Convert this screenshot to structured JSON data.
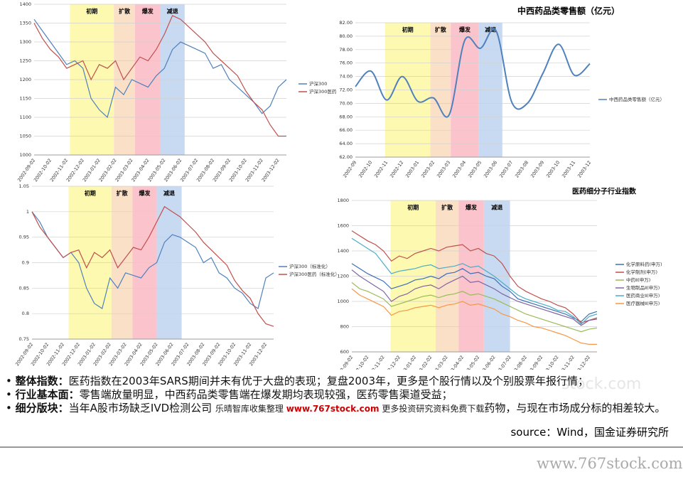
{
  "chart_data": [
    {
      "type": "line",
      "grid": true,
      "legend": "right",
      "smooth": false,
      "categories": [
        "2002-09-02",
        null,
        "2002-10-02",
        null,
        "2002-11-02",
        null,
        "2002-12-02",
        null,
        "2003-01-02",
        null,
        "2003-02-02",
        null,
        "2003-03-02",
        null,
        "2003-04-02",
        null,
        "2003-05-02",
        null,
        "2003-06-02",
        null,
        "2003-07-02",
        null,
        "2003-08-02",
        null,
        "2003-09-02",
        null,
        "2003-10-02",
        null,
        "2003-11-02",
        null,
        "2003-12-02",
        null
      ],
      "ylim": [
        1000,
        1400
      ],
      "yticks": [
        1000,
        1050,
        1100,
        1150,
        1200,
        1250,
        1300,
        1350,
        1400
      ],
      "bands": [
        {
          "label": "初期",
          "start": 4.4,
          "end": 9.8,
          "color": "#fdf9b0"
        },
        {
          "label": "扩散",
          "start": 9.8,
          "end": 12.4,
          "color": "#fbe0c8"
        },
        {
          "label": "爆发",
          "start": 12.4,
          "end": 15.5,
          "color": "#fbc4cc"
        },
        {
          "label": "减退",
          "start": 15.5,
          "end": 18.5,
          "color": "#c8daf2"
        }
      ],
      "series": [
        {
          "name": "沪深300",
          "color": "#4f81bd",
          "values": [
            1360,
            1330,
            1300,
            1270,
            1240,
            1250,
            1230,
            1150,
            1120,
            1100,
            1180,
            1160,
            1200,
            1190,
            1180,
            1210,
            1230,
            1280,
            1300,
            1290,
            1280,
            1270,
            1230,
            1240,
            1200,
            1180,
            1160,
            1140,
            1110,
            1130,
            1180,
            1200
          ]
        },
        {
          "name": "沪深300医药",
          "color": "#c0504d",
          "values": [
            1350,
            1310,
            1280,
            1260,
            1230,
            1240,
            1250,
            1200,
            1240,
            1230,
            1250,
            1200,
            1230,
            1260,
            1250,
            1280,
            1320,
            1370,
            1360,
            1340,
            1320,
            1300,
            1270,
            1250,
            1230,
            1210,
            1170,
            1140,
            1120,
            1080,
            1050,
            1050
          ]
        }
      ]
    },
    {
      "type": "line",
      "grid": true,
      "legend": "right",
      "smooth": true,
      "title": "中西药品类零售额（亿元）",
      "categories": [
        "2002-09",
        "2002-10",
        "2002-11",
        "2002-12",
        "2003-01",
        "2003-02",
        "2003-03",
        "2003-04",
        "2003-05",
        "2003-06",
        "2003-07",
        "2003-08",
        "2003-09",
        "2003-10",
        "2003-11",
        "2003-12"
      ],
      "ylim": [
        62,
        82
      ],
      "yticks": [
        {
          "value": 62,
          "label": "62.00"
        },
        {
          "value": 64,
          "label": "64.00"
        },
        {
          "value": 66,
          "label": "66.00"
        },
        {
          "value": 68,
          "label": "68.00"
        },
        {
          "value": 70,
          "label": "70.00"
        },
        {
          "value": 72,
          "label": "72.00"
        },
        {
          "value": 74,
          "label": "74.00"
        },
        {
          "value": 76,
          "label": "76.00"
        },
        {
          "value": 78,
          "label": "78.00"
        },
        {
          "value": 80,
          "label": "80.00"
        },
        {
          "value": 82,
          "label": "82.00"
        }
      ],
      "bands": [
        {
          "label": "初期",
          "start": 1.9,
          "end": 4.8,
          "color": "#fdf9b0"
        },
        {
          "label": "扩散",
          "start": 4.8,
          "end": 6.1,
          "color": "#fbe0c8"
        },
        {
          "label": "爆发",
          "start": 6.1,
          "end": 7.9,
          "color": "#fbc4cc"
        },
        {
          "label": "减退",
          "start": 7.9,
          "end": 9.4,
          "color": "#c8daf2"
        }
      ],
      "series": [
        {
          "name": "中西药品类零售额（亿元）",
          "color": "#4f81bd",
          "values": [
            72.5,
            74.8,
            70.5,
            74.0,
            70.3,
            70.8,
            68.3,
            79.4,
            78.2,
            80.8,
            70.2,
            70.0,
            74.5,
            78.8,
            74.2,
            75.9
          ]
        }
      ]
    },
    {
      "type": "line",
      "grid": true,
      "legend": "right",
      "smooth": false,
      "categories": [
        "2002-09-02",
        null,
        "2002-10-02",
        null,
        "2002-11-02",
        null,
        "2002-12-02",
        null,
        "2003-01-02",
        null,
        "2003-02-02",
        null,
        "2003-03-02",
        null,
        "2003-04-02",
        null,
        "2003-05-02",
        null,
        "2003-06-02",
        null,
        "2003-07-02",
        null,
        "2003-08-02",
        null,
        "2003-09-02",
        null,
        "2003-10-02",
        null,
        "2003-11-02",
        null,
        "2003-12-02",
        null
      ],
      "ylim": [
        0.75,
        1.05
      ],
      "yticks": [
        0.75,
        0.8,
        0.85,
        0.9,
        0.95,
        1,
        1.05
      ],
      "bands": [
        {
          "label": "初期",
          "start": 4.7,
          "end": 10.2,
          "color": "#fdf9b0"
        },
        {
          "label": "扩散",
          "start": 10.2,
          "end": 12.9,
          "color": "#fbe0c8"
        },
        {
          "label": "爆发",
          "start": 12.9,
          "end": 16.0,
          "color": "#fbc4cc"
        },
        {
          "label": "减退",
          "start": 16.0,
          "end": 19.2,
          "color": "#c8daf2"
        }
      ],
      "series": [
        {
          "name": "沪深300（标准化）",
          "color": "#4f81bd",
          "values": [
            1,
            0.98,
            0.95,
            0.93,
            0.91,
            0.92,
            0.9,
            0.85,
            0.82,
            0.81,
            0.87,
            0.85,
            0.88,
            0.875,
            0.87,
            0.89,
            0.9,
            0.94,
            0.955,
            0.95,
            0.94,
            0.93,
            0.9,
            0.91,
            0.88,
            0.87,
            0.85,
            0.84,
            0.82,
            0.81,
            0.87,
            0.88
          ]
        },
        {
          "name": "沪深300医药（标准化）",
          "color": "#c0504d",
          "values": [
            1,
            0.97,
            0.95,
            0.93,
            0.91,
            0.92,
            0.925,
            0.89,
            0.92,
            0.91,
            0.925,
            0.89,
            0.91,
            0.93,
            0.925,
            0.95,
            0.98,
            1.01,
            1.0,
            0.99,
            0.975,
            0.96,
            0.94,
            0.925,
            0.91,
            0.895,
            0.865,
            0.845,
            0.83,
            0.8,
            0.78,
            0.775
          ]
        }
      ]
    },
    {
      "type": "line",
      "grid": true,
      "legend": "right",
      "smooth": false,
      "title": "医药细分子行业指数",
      "categories": [
        "2002-09-02",
        null,
        "2002-10-02",
        null,
        "2002-11-02",
        null,
        "2002-12-02",
        null,
        "2003-01-02",
        null,
        "2003-02-02",
        null,
        "2003-03-02",
        null,
        "2003-04-02",
        null,
        "2003-05-02",
        null,
        "2003-06-02",
        null,
        "2003-07-02",
        null,
        "2003-08-02",
        null,
        "2003-09-02",
        null,
        "2003-10-02",
        null,
        "2003-11-02",
        null,
        "2003-12-02",
        null
      ],
      "ylim": [
        600,
        1800
      ],
      "yticks": [
        600,
        800,
        1000,
        1200,
        1400,
        1600,
        1800
      ],
      "bands": [
        {
          "label": "初期",
          "start": 4.9,
          "end": 10.6,
          "color": "#fdf9b0"
        },
        {
          "label": "扩散",
          "start": 10.6,
          "end": 13.5,
          "color": "#fbe0c8"
        },
        {
          "label": "爆发",
          "start": 13.5,
          "end": 16.7,
          "color": "#fbc4cc"
        },
        {
          "label": "减退",
          "start": 16.7,
          "end": 20,
          "color": "#c8daf2"
        }
      ],
      "series": [
        {
          "name": "化学原料药(申万)",
          "color": "#3d6fb6",
          "values": [
            1300,
            1260,
            1220,
            1190,
            1160,
            1100,
            1120,
            1140,
            1170,
            1180,
            1200,
            1180,
            1220,
            1230,
            1260,
            1220,
            1230,
            1200,
            1180,
            1120,
            1080,
            1020,
            1000,
            980,
            960,
            940,
            920,
            900,
            870,
            840,
            900,
            920
          ]
        },
        {
          "name": "化学制剂(申万)",
          "color": "#c0504d",
          "values": [
            1560,
            1520,
            1480,
            1450,
            1400,
            1320,
            1360,
            1340,
            1380,
            1400,
            1420,
            1400,
            1430,
            1440,
            1450,
            1400,
            1420,
            1380,
            1360,
            1300,
            1200,
            1120,
            1080,
            1050,
            1020,
            1000,
            970,
            950,
            900,
            830,
            850,
            870
          ]
        },
        {
          "name": "中药Ⅱ(申万)",
          "color": "#9bbb59",
          "values": [
            1150,
            1100,
            1080,
            1050,
            1020,
            960,
            980,
            1000,
            1020,
            1040,
            1050,
            1030,
            1050,
            1060,
            1080,
            1050,
            1060,
            1040,
            1020,
            990,
            960,
            930,
            900,
            880,
            860,
            840,
            820,
            800,
            780,
            760,
            780,
            790
          ]
        },
        {
          "name": "生物制品Ⅱ(申万)",
          "color": "#8064a2",
          "values": [
            1250,
            1200,
            1160,
            1120,
            1080,
            1000,
            1040,
            1060,
            1100,
            1120,
            1130,
            1100,
            1140,
            1170,
            1200,
            1150,
            1160,
            1130,
            1100,
            1060,
            1030,
            1000,
            980,
            960,
            940,
            920,
            900,
            880,
            860,
            810,
            850,
            860
          ]
        },
        {
          "name": "医药商业Ⅱ(申万)",
          "color": "#4bacc6",
          "values": [
            1500,
            1460,
            1420,
            1380,
            1300,
            1220,
            1240,
            1250,
            1260,
            1280,
            1290,
            1260,
            1270,
            1280,
            1300,
            1270,
            1280,
            1240,
            1200,
            1150,
            1100,
            1050,
            1020,
            1000,
            980,
            960,
            930,
            920,
            880,
            820,
            880,
            900
          ]
        },
        {
          "name": "医疗器械Ⅱ(申万)",
          "color": "#f79646",
          "values": [
            1100,
            1050,
            1020,
            990,
            960,
            890,
            920,
            930,
            950,
            960,
            970,
            950,
            970,
            980,
            1000,
            970,
            980,
            960,
            940,
            900,
            880,
            850,
            830,
            800,
            790,
            770,
            750,
            730,
            700,
            670,
            660,
            660
          ]
        }
      ]
    }
  ],
  "notes": [
    {
      "head": "整体指数：",
      "text": "医药指数在2003年SARS期间并未有优于大盘的表现；复盘2003年，更多是个股行情以及个别股票年报行情；"
    },
    {
      "head": "行业基本面：",
      "text": "零售端放量明显，中西药品类零售端在爆发期均表现较强，医药零售渠道受益；"
    },
    {
      "head": "细分版块：",
      "text": "当年A股市场缺乏IVD检测公司",
      "tail": "药物，与现在市场成分标的相差较大。"
    }
  ],
  "watermark": {
    "pre": "乐晴智库收集整理",
    "site": "www.767stock.com",
    "post": "更多投资研究资料免费下载"
  },
  "faint": "stock.com",
  "source": "source：Wind，国金证券研究所",
  "footer": "www.767stock.com"
}
